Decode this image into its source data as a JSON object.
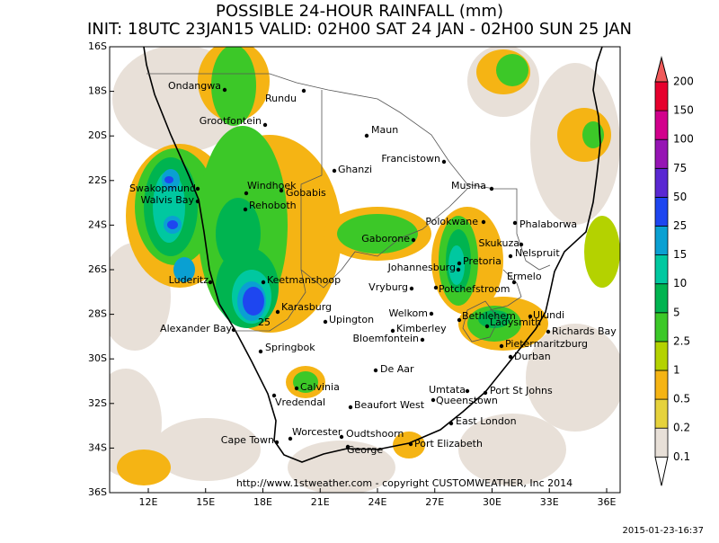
{
  "title": "POSSIBLE 24-HOUR  RAINFALL (mm)",
  "subtitle": "INIT: 18UTC 23JAN15  VALID: 02H00 SAT 24 JAN - 02H00 SUN 25 JAN",
  "map": {
    "lat_labels": [
      "16S",
      "18S",
      "20S",
      "22S",
      "24S",
      "26S",
      "28S",
      "30S",
      "32S",
      "34S",
      "36S"
    ],
    "lon_labels": [
      "12E",
      "15E",
      "18E",
      "21E",
      "24E",
      "27E",
      "30E",
      "33E",
      "36E"
    ],
    "cities": [
      "Ondangwa",
      "Rundu",
      "Grootfontein",
      "Maun",
      "Francistown",
      "Ghanzi",
      "Swakopmund",
      "Walvis Bay",
      "Windhoek",
      "Gobabis",
      "Musina",
      "Rehoboth",
      "Polokwane",
      "Phalaborwa",
      "Gaborone",
      "Skukuza",
      "Nelspruit",
      "Pretoria",
      "Johannesburg",
      "Luderitz",
      "Keetmanshoop",
      "Ermelo",
      "Vryburg",
      "Potchefstroom",
      "Karasburg",
      "Welkom",
      "Bethlehem",
      "Ulundi",
      "Ladysmith",
      "Upington",
      "Richards Bay",
      "Alexander Bay",
      "Kimberley",
      "Bloemfontein",
      "Pietermaritzburg",
      "Springbok",
      "Durban",
      "De Aar",
      "Calvinia",
      "Umtata",
      "Port St Johns",
      "Queenstown",
      "Vredendal",
      "Beaufort West",
      "East London",
      "Worcester",
      "Oudtshoorn",
      "Cape Town",
      "George",
      "Port Elizabeth"
    ],
    "contour_labels": [
      "25"
    ],
    "credit": "http://www.1stweather.com - copyright CUSTOMWEATHER, Inc 2014"
  },
  "legend": {
    "levels": [
      0.1,
      0.2,
      0.5,
      1,
      2.5,
      5,
      10,
      15,
      25,
      50,
      75,
      100,
      150,
      200
    ],
    "colors": [
      "#ffffff",
      "#e8e0d8",
      "#e6d23c",
      "#f5b414",
      "#b4d200",
      "#3cc828",
      "#00b450",
      "#00c8a0",
      "#0aa0d2",
      "#1e46f0",
      "#5a28d2",
      "#9614b4",
      "#d2008c",
      "#e6002d",
      "#f05a5a"
    ]
  },
  "timestamp": "2015-01-23-16:37"
}
